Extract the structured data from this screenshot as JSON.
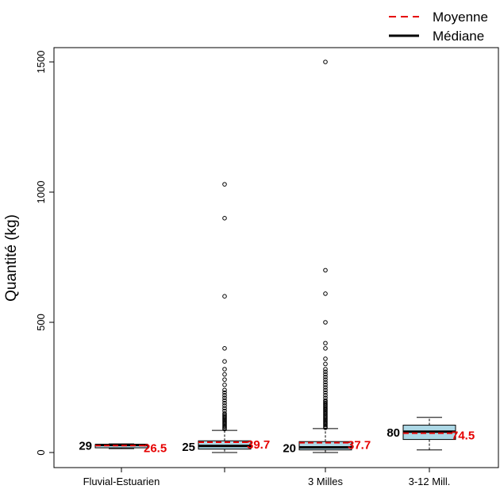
{
  "chart_data": {
    "type": "boxplot",
    "title": "",
    "xlabel": "",
    "ylabel": "Quantité (kg)",
    "ylim": [
      0,
      1550
    ],
    "yticks": [
      0,
      500,
      1000,
      1500
    ],
    "grid": false,
    "legend": {
      "placement": "top-right",
      "entries": [
        {
          "label": "Moyenne",
          "style": "dashed",
          "color": "#e60000"
        },
        {
          "label": "Médiane",
          "style": "solid",
          "color": "#000000"
        }
      ]
    },
    "box_fill": "#add8e6",
    "groups": [
      {
        "category": "Fluvial-Estuarien",
        "min": 15,
        "q1": 18,
        "median": 29,
        "q3": 31,
        "max": 33,
        "mean": 26.5,
        "median_label": "29",
        "mean_label": "26.5",
        "outliers": []
      },
      {
        "category": "",
        "min": 0,
        "q1": 13,
        "median": 25,
        "q3": 45,
        "max": 85,
        "mean": 39.7,
        "median_label": "25",
        "mean_label": "39.7",
        "outliers": [
          90,
          95,
          100,
          105,
          110,
          115,
          120,
          125,
          130,
          135,
          140,
          145,
          150,
          160,
          170,
          180,
          190,
          200,
          210,
          220,
          230,
          240,
          260,
          280,
          300,
          320,
          350,
          400,
          600,
          900,
          1030
        ]
      },
      {
        "category": "3 Milles",
        "min": 0,
        "q1": 10,
        "median": 20,
        "q3": 42,
        "max": 92,
        "mean": 37.7,
        "median_label": "20",
        "mean_label": "37.7",
        "outliers": [
          95,
          100,
          105,
          110,
          115,
          120,
          125,
          130,
          135,
          140,
          145,
          150,
          155,
          160,
          165,
          170,
          175,
          180,
          185,
          190,
          195,
          200,
          210,
          220,
          230,
          240,
          250,
          260,
          270,
          280,
          290,
          300,
          310,
          320,
          340,
          360,
          400,
          420,
          500,
          610,
          700,
          1500
        ]
      },
      {
        "category": "3-12 Mill.",
        "min": 10,
        "q1": 50,
        "median": 80,
        "q3": 105,
        "max": 135,
        "mean": 74.5,
        "median_label": "80",
        "mean_label": "74.5",
        "outliers": []
      }
    ]
  }
}
